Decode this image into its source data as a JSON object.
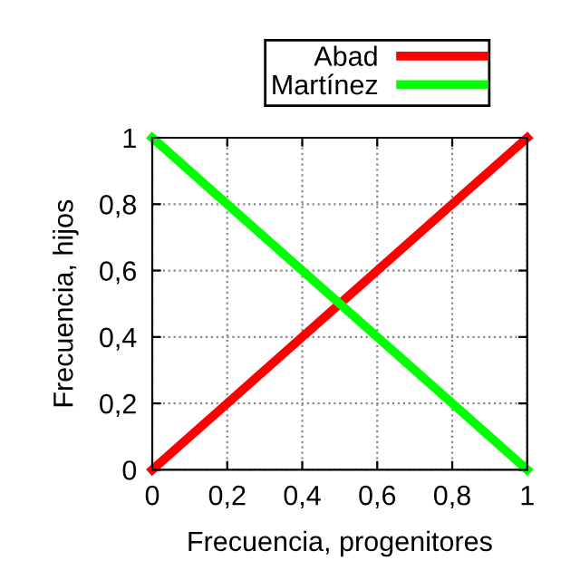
{
  "chart_data": {
    "type": "line",
    "xlabel": "Frecuencia, progenitores",
    "ylabel": "Frecuencia, hijos",
    "x": [
      0,
      1
    ],
    "series": [
      {
        "name": "Abad",
        "color": "#ff0000",
        "values": [
          0,
          1
        ]
      },
      {
        "name": "Martínez",
        "color": "#00ff00",
        "values": [
          1,
          0
        ]
      }
    ],
    "xlim": [
      0,
      1
    ],
    "ylim": [
      0,
      1
    ],
    "xticks": [
      0,
      {
        "value": 0.2,
        "label": "0,2"
      },
      {
        "value": 0.4,
        "label": "0,4"
      },
      {
        "value": 0.6,
        "label": "0,6"
      },
      {
        "value": 0.8,
        "label": "0,8"
      },
      1
    ],
    "yticks": [
      0,
      {
        "value": 0.2,
        "label": "0,2"
      },
      {
        "value": 0.4,
        "label": "0,4"
      },
      {
        "value": 0.6,
        "label": "0,6"
      },
      {
        "value": 0.8,
        "label": "0,8"
      },
      1
    ],
    "grid": true,
    "legend": "top",
    "line_style": "solid"
  }
}
